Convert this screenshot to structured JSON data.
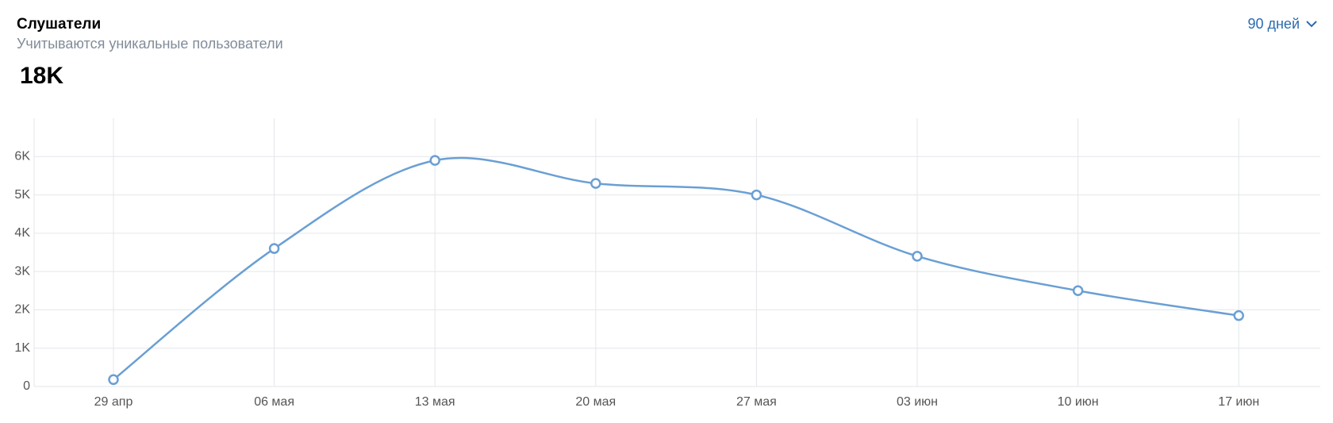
{
  "chart_data": {
    "type": "line",
    "title": "Слушатели",
    "subtitle": "Учитываются уникальные пользователи",
    "total_label": "18K",
    "period": "90 дней",
    "categories": [
      "29 апр",
      "06 мая",
      "13 мая",
      "20 мая",
      "27 мая",
      "03 июн",
      "10 июн",
      "17 июн"
    ],
    "values": [
      180,
      3600,
      5900,
      5300,
      5000,
      3400,
      2500,
      1850
    ],
    "color": "#6a9fd4",
    "ylim": [
      0,
      7000
    ],
    "yticks": [
      0,
      {
        "value": 1000,
        "label": "1K"
      },
      {
        "value": 2000,
        "label": "2K"
      },
      {
        "value": 3000,
        "label": "3K"
      },
      {
        "value": 4000,
        "label": "4K"
      },
      {
        "value": 5000,
        "label": "5K"
      },
      {
        "value": 6000,
        "label": "6K"
      }
    ],
    "grid": true
  }
}
